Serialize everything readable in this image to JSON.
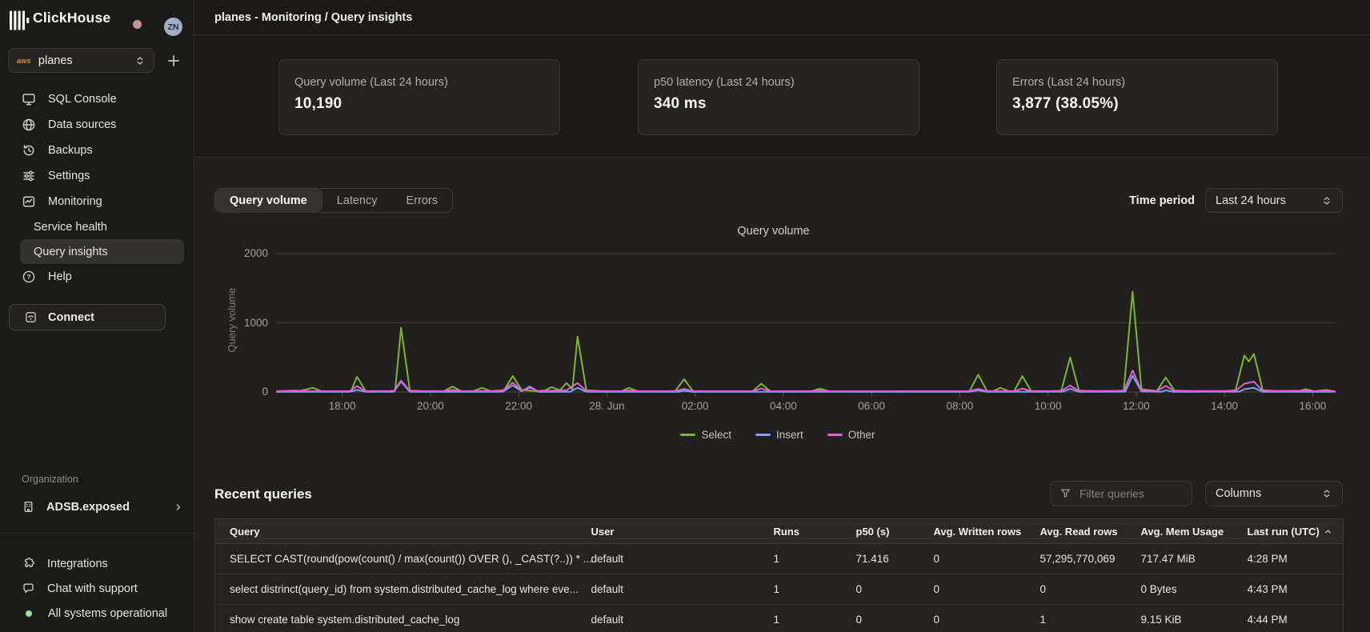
{
  "sidebar": {
    "brand": "ClickHouse",
    "avatar": "ZN",
    "selector": {
      "provider": "aws",
      "value": "planes"
    },
    "nav": [
      {
        "label": "SQL Console",
        "icon": "terminal-icon"
      },
      {
        "label": "Data sources",
        "icon": "globe-icon"
      },
      {
        "label": "Backups",
        "icon": "history-icon"
      },
      {
        "label": "Settings",
        "icon": "sliders-icon"
      },
      {
        "label": "Monitoring",
        "icon": "chart-icon"
      }
    ],
    "subnav": [
      {
        "label": "Service health",
        "active": false
      },
      {
        "label": "Query insights",
        "active": true
      }
    ],
    "help": "Help",
    "connect": "Connect",
    "org_section": "Organization",
    "org_name": "ADSB.exposed",
    "footer": [
      {
        "label": "Integrations"
      },
      {
        "label": "Chat with support"
      },
      {
        "label": "All systems operational",
        "status_color": "#90e39b"
      }
    ]
  },
  "header": {
    "breadcrumb": "planes - Monitoring / Query insights"
  },
  "stats": [
    {
      "label": "Query volume (Last 24 hours)",
      "value": "10,190"
    },
    {
      "label": "p50 latency (Last 24 hours)",
      "value": "340 ms"
    },
    {
      "label": "Errors (Last 24 hours)",
      "value": "3,877 (38.05%)"
    }
  ],
  "tabs": {
    "items": [
      "Query volume",
      "Latency",
      "Errors"
    ],
    "active": "Query volume"
  },
  "time_period": {
    "label": "Time period",
    "value": "Last 24 hours"
  },
  "chart_data": {
    "type": "line",
    "title": "Query volume",
    "ylabel": "Query volume",
    "ylim": [
      0,
      2000
    ],
    "yticks": [
      0,
      1000,
      2000
    ],
    "x_unit": "minutes since 16:30 on 27 Jun (24 h window)",
    "xrange": [
      0,
      1440
    ],
    "xticks": [
      {
        "t": 90,
        "label": "18:00"
      },
      {
        "t": 210,
        "label": "20:00"
      },
      {
        "t": 330,
        "label": "22:00"
      },
      {
        "t": 450,
        "label": "28. Jun"
      },
      {
        "t": 570,
        "label": "02:00"
      },
      {
        "t": 690,
        "label": "04:00"
      },
      {
        "t": 810,
        "label": "06:00"
      },
      {
        "t": 930,
        "label": "08:00"
      },
      {
        "t": 1050,
        "label": "10:00"
      },
      {
        "t": 1170,
        "label": "12:00"
      },
      {
        "t": 1290,
        "label": "14:00"
      },
      {
        "t": 1410,
        "label": "16:00"
      }
    ],
    "grid": true,
    "legend_position": "bottom",
    "series": [
      {
        "name": "Select",
        "color": "#79b82d",
        "points": [
          [
            0,
            8
          ],
          [
            30,
            10
          ],
          [
            50,
            60
          ],
          [
            62,
            12
          ],
          [
            90,
            8
          ],
          [
            102,
            15
          ],
          [
            110,
            220
          ],
          [
            122,
            12
          ],
          [
            150,
            8
          ],
          [
            162,
            18
          ],
          [
            170,
            930
          ],
          [
            182,
            20
          ],
          [
            205,
            10
          ],
          [
            228,
            10
          ],
          [
            240,
            80
          ],
          [
            252,
            12
          ],
          [
            268,
            10
          ],
          [
            280,
            60
          ],
          [
            292,
            12
          ],
          [
            310,
            25
          ],
          [
            322,
            230
          ],
          [
            334,
            30
          ],
          [
            350,
            15
          ],
          [
            365,
            20
          ],
          [
            375,
            70
          ],
          [
            386,
            25
          ],
          [
            395,
            130
          ],
          [
            403,
            40
          ],
          [
            410,
            800
          ],
          [
            422,
            25
          ],
          [
            445,
            10
          ],
          [
            470,
            12
          ],
          [
            480,
            60
          ],
          [
            492,
            10
          ],
          [
            520,
            8
          ],
          [
            543,
            15
          ],
          [
            555,
            185
          ],
          [
            567,
            15
          ],
          [
            600,
            8
          ],
          [
            648,
            12
          ],
          [
            660,
            120
          ],
          [
            672,
            12
          ],
          [
            700,
            8
          ],
          [
            728,
            10
          ],
          [
            740,
            50
          ],
          [
            752,
            10
          ],
          [
            800,
            6
          ],
          [
            860,
            6
          ],
          [
            910,
            8
          ],
          [
            943,
            10
          ],
          [
            955,
            250
          ],
          [
            967,
            15
          ],
          [
            975,
            12
          ],
          [
            985,
            60
          ],
          [
            997,
            12
          ],
          [
            1004,
            15
          ],
          [
            1015,
            230
          ],
          [
            1027,
            15
          ],
          [
            1055,
            10
          ],
          [
            1068,
            20
          ],
          [
            1080,
            500
          ],
          [
            1092,
            20
          ],
          [
            1120,
            10
          ],
          [
            1153,
            20
          ],
          [
            1165,
            1450
          ],
          [
            1177,
            40
          ],
          [
            1198,
            15
          ],
          [
            1210,
            210
          ],
          [
            1222,
            20
          ],
          [
            1250,
            12
          ],
          [
            1290,
            10
          ],
          [
            1305,
            25
          ],
          [
            1317,
            530
          ],
          [
            1323,
            440
          ],
          [
            1330,
            550
          ],
          [
            1342,
            25
          ],
          [
            1370,
            8
          ],
          [
            1390,
            10
          ],
          [
            1400,
            40
          ],
          [
            1412,
            10
          ],
          [
            1428,
            30
          ],
          [
            1440,
            8
          ]
        ]
      },
      {
        "name": "Insert",
        "color": "#7ba0f8",
        "points": [
          [
            0,
            2
          ],
          [
            100,
            2
          ],
          [
            110,
            30
          ],
          [
            122,
            3
          ],
          [
            160,
            3
          ],
          [
            170,
            150
          ],
          [
            182,
            4
          ],
          [
            240,
            2
          ],
          [
            308,
            4
          ],
          [
            322,
            95
          ],
          [
            334,
            12
          ],
          [
            345,
            80
          ],
          [
            357,
            4
          ],
          [
            400,
            3
          ],
          [
            410,
            60
          ],
          [
            422,
            3
          ],
          [
            548,
            2
          ],
          [
            555,
            20
          ],
          [
            565,
            2
          ],
          [
            943,
            2
          ],
          [
            955,
            25
          ],
          [
            967,
            2
          ],
          [
            1070,
            5
          ],
          [
            1080,
            45
          ],
          [
            1092,
            4
          ],
          [
            1155,
            5
          ],
          [
            1165,
            235
          ],
          [
            1177,
            8
          ],
          [
            1204,
            3
          ],
          [
            1210,
            25
          ],
          [
            1220,
            3
          ],
          [
            1310,
            5
          ],
          [
            1317,
            40
          ],
          [
            1330,
            60
          ],
          [
            1342,
            3
          ],
          [
            1440,
            2
          ]
        ]
      },
      {
        "name": "Other",
        "color": "#e35fd6",
        "points": [
          [
            0,
            10
          ],
          [
            25,
            22
          ],
          [
            40,
            12
          ],
          [
            100,
            12
          ],
          [
            110,
            85
          ],
          [
            122,
            12
          ],
          [
            160,
            14
          ],
          [
            170,
            165
          ],
          [
            182,
            14
          ],
          [
            228,
            12
          ],
          [
            240,
            30
          ],
          [
            252,
            12
          ],
          [
            308,
            15
          ],
          [
            322,
            135
          ],
          [
            334,
            20
          ],
          [
            345,
            60
          ],
          [
            357,
            12
          ],
          [
            395,
            25
          ],
          [
            410,
            130
          ],
          [
            422,
            14
          ],
          [
            470,
            12
          ],
          [
            480,
            22
          ],
          [
            492,
            11
          ],
          [
            543,
            12
          ],
          [
            555,
            45
          ],
          [
            567,
            12
          ],
          [
            648,
            12
          ],
          [
            660,
            50
          ],
          [
            672,
            12
          ],
          [
            728,
            11
          ],
          [
            740,
            22
          ],
          [
            752,
            10
          ],
          [
            943,
            12
          ],
          [
            955,
            45
          ],
          [
            967,
            12
          ],
          [
            1004,
            12
          ],
          [
            1015,
            50
          ],
          [
            1027,
            12
          ],
          [
            1068,
            15
          ],
          [
            1080,
            95
          ],
          [
            1092,
            14
          ],
          [
            1153,
            15
          ],
          [
            1165,
            310
          ],
          [
            1177,
            20
          ],
          [
            1198,
            14
          ],
          [
            1210,
            90
          ],
          [
            1222,
            14
          ],
          [
            1305,
            15
          ],
          [
            1317,
            120
          ],
          [
            1330,
            150
          ],
          [
            1342,
            14
          ],
          [
            1400,
            18
          ],
          [
            1412,
            12
          ],
          [
            1440,
            10
          ]
        ]
      }
    ]
  },
  "recent": {
    "title": "Recent queries",
    "filter_placeholder": "Filter queries",
    "columns_button": "Columns",
    "columns": [
      "Query",
      "User",
      "Runs",
      "p50 (s)",
      "Avg. Written rows",
      "Avg. Read rows",
      "Avg. Mem Usage",
      "Last run (UTC)"
    ],
    "sort": {
      "column": "Last run (UTC)",
      "direction": "asc"
    },
    "rows": [
      {
        "query": "SELECT CAST(round(pow(count() / max(count()) OVER (), _CAST(?..)) * ...",
        "user": "default",
        "runs": "1",
        "p50": "71.416",
        "avg_written": "0",
        "avg_read": "57,295,770,069",
        "avg_mem": "717.47 MiB",
        "last_run": "4:28 PM"
      },
      {
        "query": "select distrinct(query_id) from system.distributed_cache_log where eve...",
        "user": "default",
        "runs": "1",
        "p50": "0",
        "avg_written": "0",
        "avg_read": "0",
        "avg_mem": "0 Bytes",
        "last_run": "4:43 PM"
      },
      {
        "query": "show create table system.distributed_cache_log",
        "user": "default",
        "runs": "1",
        "p50": "0",
        "avg_written": "0",
        "avg_read": "1",
        "avg_mem": "9.15 KiB",
        "last_run": "4:44 PM"
      }
    ]
  }
}
